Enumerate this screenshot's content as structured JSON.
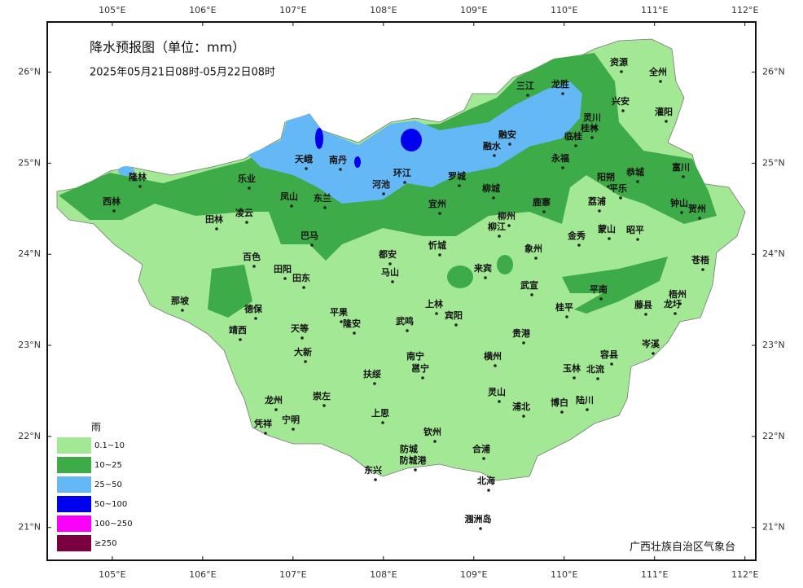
{
  "map": {
    "type": "map",
    "title": "降水预报图（单位：mm）",
    "subtitle": "2025年05月21日08时-05月22日08时",
    "xlim": [
      104.28,
      112.12
    ],
    "ylim": [
      20.64,
      26.55
    ],
    "xticks": [
      {
        "value": 105,
        "label": "105°E"
      },
      {
        "value": 106,
        "label": "106°E"
      },
      {
        "value": 107,
        "label": "107°E"
      },
      {
        "value": 108,
        "label": "108°E"
      },
      {
        "value": 109,
        "label": "109°E"
      },
      {
        "value": 110,
        "label": "110°E"
      },
      {
        "value": 111,
        "label": "111°E"
      },
      {
        "value": 112,
        "label": "112°E"
      }
    ],
    "yticks": [
      {
        "value": 26,
        "label": "26°N"
      },
      {
        "value": 25,
        "label": "25°N"
      },
      {
        "value": 24,
        "label": "24°N"
      },
      {
        "value": 23,
        "label": "23°N"
      },
      {
        "value": 22,
        "label": "22°N"
      },
      {
        "value": 21,
        "label": "21°N"
      }
    ],
    "legend": {
      "title": "雨",
      "items": [
        {
          "label": "0.1~10",
          "color": "#a3e894"
        },
        {
          "label": "10~25",
          "color": "#3dab48"
        },
        {
          "label": "25~50",
          "color": "#63b8f5"
        },
        {
          "label": "50~100",
          "color": "#0000f0"
        },
        {
          "label": "100~250",
          "color": "#fa00fa"
        },
        {
          "label": "≥250",
          "color": "#7a0040"
        }
      ]
    },
    "cities": [
      "资源",
      "全州",
      "三江",
      "龙胜",
      "兴安",
      "灵川",
      "桂林",
      "灌阳",
      "临桂",
      "融安",
      "融水",
      "天峨",
      "南丹",
      "永福",
      "富川",
      "恭城",
      "乐业",
      "环江",
      "罗城",
      "隆林",
      "阳朔",
      "平乐",
      "河池",
      "凤山",
      "东兰",
      "柳城",
      "钟山",
      "贺州",
      "西林",
      "宜州",
      "鹿寨",
      "荔浦",
      "凌云",
      "田林",
      "柳州",
      "柳江",
      "蒙山",
      "昭平",
      "巴马",
      "金秀",
      "忻城",
      "象州",
      "都安",
      "百色",
      "苍梧",
      "来宾",
      "田阳",
      "田东",
      "马山",
      "武宣",
      "平南",
      "梧州",
      "那坡",
      "上林",
      "藤县",
      "龙圩",
      "德保",
      "桂平",
      "平果",
      "宾阳",
      "隆安",
      "武鸣",
      "靖西",
      "天等",
      "贵港",
      "岑溪",
      "大新",
      "容县",
      "南宁",
      "横州",
      "邕宁",
      "玉林",
      "北流",
      "扶绥",
      "崇左",
      "龙州",
      "灵山",
      "博白",
      "陆川",
      "浦北",
      "凭祥",
      "宁明",
      "上思",
      "钦州",
      "防城",
      "合浦",
      "防城港",
      "东兴",
      "北海",
      "涠洲岛"
    ],
    "source": "广西壮族自治区气象台"
  }
}
